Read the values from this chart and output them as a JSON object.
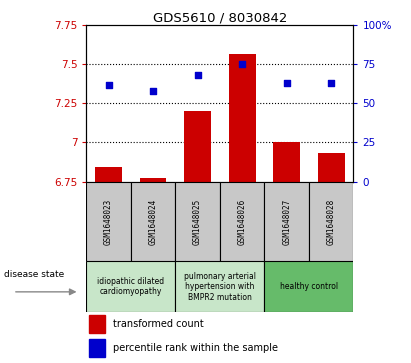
{
  "title": "GDS5610 / 8030842",
  "samples": [
    "GSM1648023",
    "GSM1648024",
    "GSM1648025",
    "GSM1648026",
    "GSM1648027",
    "GSM1648028"
  ],
  "transformed_count": [
    6.84,
    6.77,
    7.2,
    7.57,
    7.0,
    6.93
  ],
  "percentile_rank": [
    62,
    58,
    68,
    75,
    63,
    63
  ],
  "ylim_left": [
    6.75,
    7.75
  ],
  "ylim_right": [
    0,
    100
  ],
  "yticks_left": [
    6.75,
    7.0,
    7.25,
    7.5,
    7.75
  ],
  "yticks_right": [
    0,
    25,
    50,
    75,
    100
  ],
  "ytick_labels_left": [
    "6.75",
    "7",
    "7.25",
    "7.5",
    "7.75"
  ],
  "ytick_labels_right": [
    "0",
    "25",
    "50",
    "75",
    "100%"
  ],
  "hlines": [
    7.0,
    7.25,
    7.5
  ],
  "bar_color": "#cc0000",
  "dot_color": "#0000cc",
  "bar_width": 0.6,
  "disease_groups": [
    {
      "label": "idiopathic dilated\ncardiomyopathy",
      "indices": [
        0,
        1
      ],
      "color": "#c8e6c9"
    },
    {
      "label": "pulmonary arterial\nhypertension with\nBMPR2 mutation",
      "indices": [
        2,
        3
      ],
      "color": "#c8e6c9"
    },
    {
      "label": "healthy control",
      "indices": [
        4,
        5
      ],
      "color": "#66bb6a"
    }
  ],
  "disease_state_label": "disease state",
  "legend_bar_label": "transformed count",
  "legend_dot_label": "percentile rank within the sample",
  "title_color": "#000000",
  "tick_color_left": "#cc0000",
  "tick_color_right": "#0000cc",
  "sample_box_color": "#c8c8c8",
  "fig_width": 4.11,
  "fig_height": 3.63,
  "dpi": 100
}
